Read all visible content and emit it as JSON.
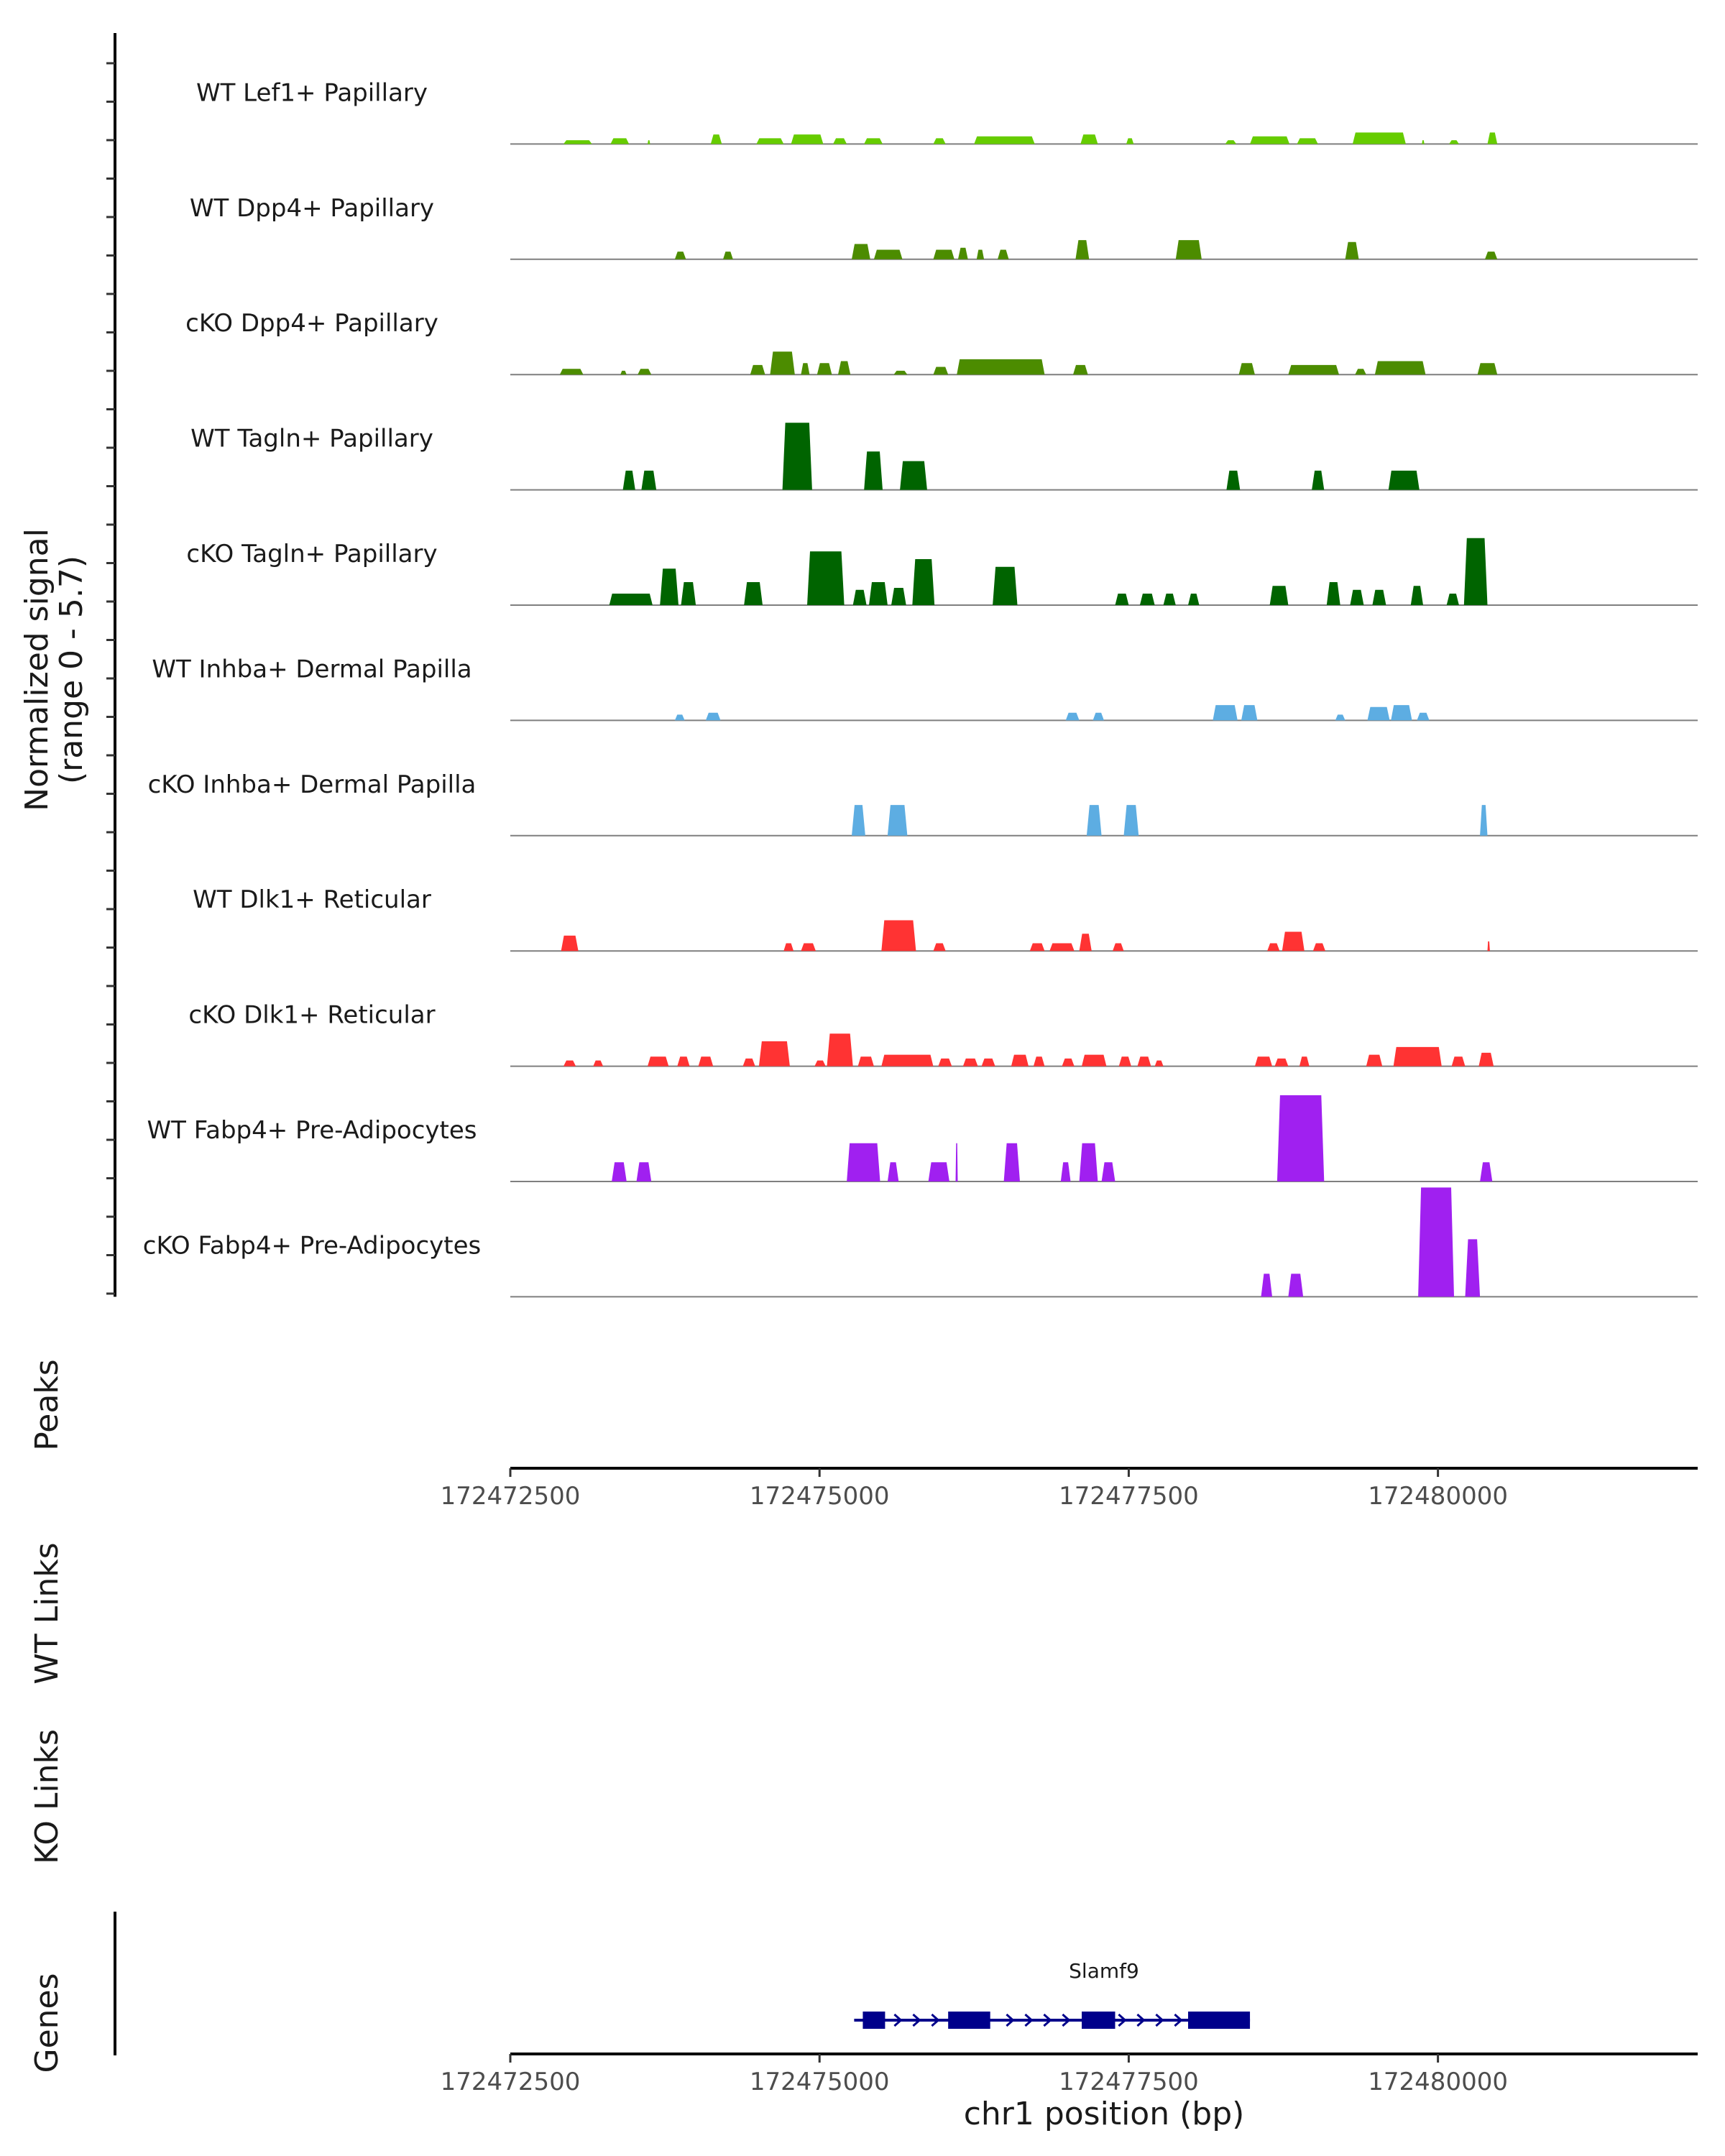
{
  "chart_data": {
    "type": "area",
    "title": "",
    "y_axis_title": "Normalized signal",
    "y_axis_subtitle": "(range 0 - 5.7)",
    "ylim": [
      0,
      5.7
    ],
    "xlim": [
      172472500,
      172482100
    ],
    "tracks": [
      {
        "name": "WT Lef1+ Papillary",
        "color": "#66CC00",
        "segments": [
          [
            172472930,
            172473160,
            0.2
          ],
          [
            172473310,
            172473460,
            0.3
          ],
          [
            172473610,
            172473630,
            0.2
          ],
          [
            172474120,
            172474210,
            0.5
          ],
          [
            172474490,
            172474710,
            0.3
          ],
          [
            172474770,
            172475030,
            0.5
          ],
          [
            172475110,
            172475220,
            0.3
          ],
          [
            172475360,
            172475510,
            0.3
          ],
          [
            172475920,
            172476020,
            0.3
          ],
          [
            172476250,
            172476740,
            0.4
          ],
          [
            172477110,
            172477250,
            0.5
          ],
          [
            172477480,
            172477540,
            0.3
          ],
          [
            172478280,
            172478370,
            0.2
          ],
          [
            172478480,
            172478800,
            0.4
          ],
          [
            172478860,
            172479030,
            0.3
          ],
          [
            172479310,
            172479740,
            0.6
          ],
          [
            172479870,
            172479890,
            0.2
          ],
          [
            172480090,
            172480170,
            0.2
          ],
          [
            172480400,
            172480480,
            0.6
          ]
        ]
      },
      {
        "name": "WT Dpp4+ Papillary",
        "color": "#4C8C00",
        "segments": [
          [
            172473830,
            172473920,
            0.4
          ],
          [
            172474220,
            172474300,
            0.4
          ],
          [
            172475260,
            172475410,
            0.8
          ],
          [
            172475440,
            172475670,
            0.5
          ],
          [
            172475920,
            172476090,
            0.5
          ],
          [
            172476120,
            172476200,
            0.6
          ],
          [
            172476270,
            172476330,
            0.5
          ],
          [
            172476440,
            172476530,
            0.5
          ],
          [
            172477070,
            172477180,
            1.0
          ],
          [
            172477880,
            172478090,
            1.0
          ],
          [
            172479250,
            172479360,
            0.9
          ],
          [
            172480380,
            172480480,
            0.4
          ]
        ]
      },
      {
        "name": "cKO Dpp4+ Papillary",
        "color": "#4C8C00",
        "segments": [
          [
            172472900,
            172473090,
            0.3
          ],
          [
            172473390,
            172473440,
            0.2
          ],
          [
            172473530,
            172473640,
            0.3
          ],
          [
            172474440,
            172474560,
            0.5
          ],
          [
            172474600,
            172474800,
            1.2
          ],
          [
            172474850,
            172474920,
            0.6
          ],
          [
            172474980,
            172475100,
            0.6
          ],
          [
            172475150,
            172475250,
            0.7
          ],
          [
            172475600,
            172475710,
            0.2
          ],
          [
            172475920,
            172476040,
            0.4
          ],
          [
            172476110,
            172476820,
            0.8
          ],
          [
            172477050,
            172477170,
            0.5
          ],
          [
            172478390,
            172478520,
            0.6
          ],
          [
            172478790,
            172479200,
            0.5
          ],
          [
            172479330,
            172479420,
            0.3
          ],
          [
            172479490,
            172479900,
            0.7
          ],
          [
            172480320,
            172480480,
            0.6
          ]
        ]
      },
      {
        "name": "WT Tagln+ Papillary",
        "color": "#006400",
        "segments": [
          [
            172473410,
            172473510,
            1.0
          ],
          [
            172473560,
            172473680,
            1.0
          ],
          [
            172474700,
            172474940,
            3.5
          ],
          [
            172475360,
            172475510,
            2.0
          ],
          [
            172475650,
            172475870,
            1.5
          ],
          [
            172478290,
            172478400,
            1.0
          ],
          [
            172478980,
            172479080,
            1.0
          ],
          [
            172479600,
            172479850,
            1.0
          ]
        ]
      },
      {
        "name": "cKO Tagln+ Papillary",
        "color": "#006400",
        "segments": [
          [
            172473300,
            172473650,
            0.6
          ],
          [
            172473710,
            172473860,
            1.9
          ],
          [
            172473880,
            172474000,
            1.2
          ],
          [
            172474390,
            172474540,
            1.2
          ],
          [
            172474900,
            172475200,
            2.8
          ],
          [
            172475270,
            172475380,
            0.8
          ],
          [
            172475400,
            172475550,
            1.2
          ],
          [
            172475580,
            172475700,
            0.9
          ],
          [
            172475750,
            172475930,
            2.4
          ],
          [
            172476400,
            172476600,
            2.0
          ],
          [
            172477390,
            172477500,
            0.6
          ],
          [
            172477590,
            172477710,
            0.6
          ],
          [
            172477780,
            172477880,
            0.6
          ],
          [
            172477980,
            172478070,
            0.6
          ],
          [
            172478640,
            172478790,
            1.0
          ],
          [
            172479100,
            172479210,
            1.2
          ],
          [
            172479290,
            172479400,
            0.8
          ],
          [
            172479470,
            172479580,
            0.8
          ],
          [
            172479780,
            172479880,
            1.0
          ],
          [
            172480070,
            172480170,
            0.6
          ],
          [
            172480210,
            172480400,
            3.5
          ]
        ]
      },
      {
        "name": "WT Inhba+ Dermal Papilla",
        "color": "#5DADE2",
        "segments": [
          [
            172473830,
            172473910,
            0.3
          ],
          [
            172474080,
            172474200,
            0.4
          ],
          [
            172476990,
            172477100,
            0.4
          ],
          [
            172477210,
            172477300,
            0.4
          ],
          [
            172478180,
            172478380,
            0.8
          ],
          [
            172478410,
            172478540,
            0.8
          ],
          [
            172479170,
            172479250,
            0.3
          ],
          [
            172479430,
            172479610,
            0.7
          ],
          [
            172479620,
            172479790,
            0.8
          ],
          [
            172479830,
            172479930,
            0.4
          ]
        ]
      },
      {
        "name": "cKO Inhba+ Dermal Papilla",
        "color": "#5DADE2",
        "segments": [
          [
            172475260,
            172475370,
            1.6
          ],
          [
            172475550,
            172475710,
            1.6
          ],
          [
            172477160,
            172477280,
            1.6
          ],
          [
            172477460,
            172477580,
            1.6
          ],
          [
            172480340,
            172480400,
            1.6
          ]
        ]
      },
      {
        "name": "WT Dlk1+ Reticular",
        "color": "#FF3333",
        "segments": [
          [
            172472910,
            172473050,
            0.8
          ],
          [
            172474710,
            172474790,
            0.4
          ],
          [
            172474850,
            172474970,
            0.4
          ],
          [
            172475500,
            172475780,
            1.6
          ],
          [
            172475920,
            172476020,
            0.4
          ],
          [
            172476700,
            172476820,
            0.4
          ],
          [
            172476860,
            172477060,
            0.4
          ],
          [
            172477100,
            172477200,
            0.9
          ],
          [
            172477370,
            172477460,
            0.4
          ],
          [
            172478620,
            172478720,
            0.4
          ],
          [
            172478740,
            172478920,
            1.0
          ],
          [
            172478990,
            172479090,
            0.4
          ],
          [
            172480400,
            172480420,
            0.5
          ]
        ]
      },
      {
        "name": "cKO Dlk1+ Reticular",
        "color": "#FF3333",
        "segments": [
          [
            172472930,
            172473030,
            0.3
          ],
          [
            172473170,
            172473250,
            0.3
          ],
          [
            172473610,
            172473780,
            0.5
          ],
          [
            172473850,
            172473950,
            0.5
          ],
          [
            172474020,
            172474140,
            0.5
          ],
          [
            172474380,
            172474480,
            0.4
          ],
          [
            172474510,
            172474760,
            1.3
          ],
          [
            172474960,
            172475050,
            0.3
          ],
          [
            172475060,
            172475270,
            1.7
          ],
          [
            172475310,
            172475440,
            0.5
          ],
          [
            172475500,
            172475920,
            0.6
          ],
          [
            172475960,
            172476070,
            0.4
          ],
          [
            172476160,
            172476280,
            0.4
          ],
          [
            172476310,
            172476420,
            0.4
          ],
          [
            172476550,
            172476690,
            0.6
          ],
          [
            172476730,
            172476820,
            0.5
          ],
          [
            172476960,
            172477060,
            0.4
          ],
          [
            172477120,
            172477320,
            0.6
          ],
          [
            172477420,
            172477520,
            0.5
          ],
          [
            172477570,
            172477680,
            0.5
          ],
          [
            172477710,
            172477780,
            0.3
          ],
          [
            172478520,
            172478660,
            0.5
          ],
          [
            172478680,
            172478790,
            0.4
          ],
          [
            172478880,
            172478960,
            0.5
          ],
          [
            172479420,
            172479550,
            0.6
          ],
          [
            172479640,
            172480030,
            1.0
          ],
          [
            172480110,
            172480220,
            0.5
          ],
          [
            172480330,
            172480450,
            0.7
          ]
        ]
      },
      {
        "name": "WT Fabp4+ Pre-Adipocytes",
        "color": "#A020F0",
        "segments": [
          [
            172473320,
            172473440,
            1.0
          ],
          [
            172473520,
            172473640,
            1.0
          ],
          [
            172475220,
            172475490,
            2.0
          ],
          [
            172475550,
            172475640,
            1.0
          ],
          [
            172475880,
            172476050,
            1.0
          ],
          [
            172476100,
            172476110,
            2.0
          ],
          [
            172476490,
            172476620,
            2.0
          ],
          [
            172476950,
            172477030,
            1.0
          ],
          [
            172477100,
            172477250,
            2.0
          ],
          [
            172477280,
            172477390,
            1.0
          ],
          [
            172478700,
            172479080,
            4.5
          ],
          [
            172480340,
            172480440,
            1.0
          ]
        ]
      },
      {
        "name": "cKO Fabp4+ Pre-Adipocytes",
        "color": "#A020F0",
        "segments": [
          [
            172478570,
            172478660,
            1.2
          ],
          [
            172478790,
            172478910,
            1.2
          ],
          [
            172479840,
            172480130,
            5.7
          ],
          [
            172480220,
            172480340,
            3.0
          ]
        ]
      }
    ],
    "extra_tracks": [
      "Peaks",
      "WT Links",
      "KO Links",
      "Genes"
    ],
    "x_ticks": [
      172472500,
      172475000,
      172477500,
      172480000
    ],
    "x_tick_labels": [
      "172472500",
      "172475000",
      "172477500",
      "172480000"
    ],
    "xlabel": "chr1 position (bp)",
    "gene": {
      "name": "Slamf9",
      "color": "#00008B",
      "start": 172475280,
      "end": 172478480,
      "strand": "+",
      "exons": [
        [
          172475350,
          172475530
        ],
        [
          172476040,
          172476380
        ],
        [
          172477120,
          172477390
        ],
        [
          172477980,
          172478480
        ]
      ]
    }
  }
}
